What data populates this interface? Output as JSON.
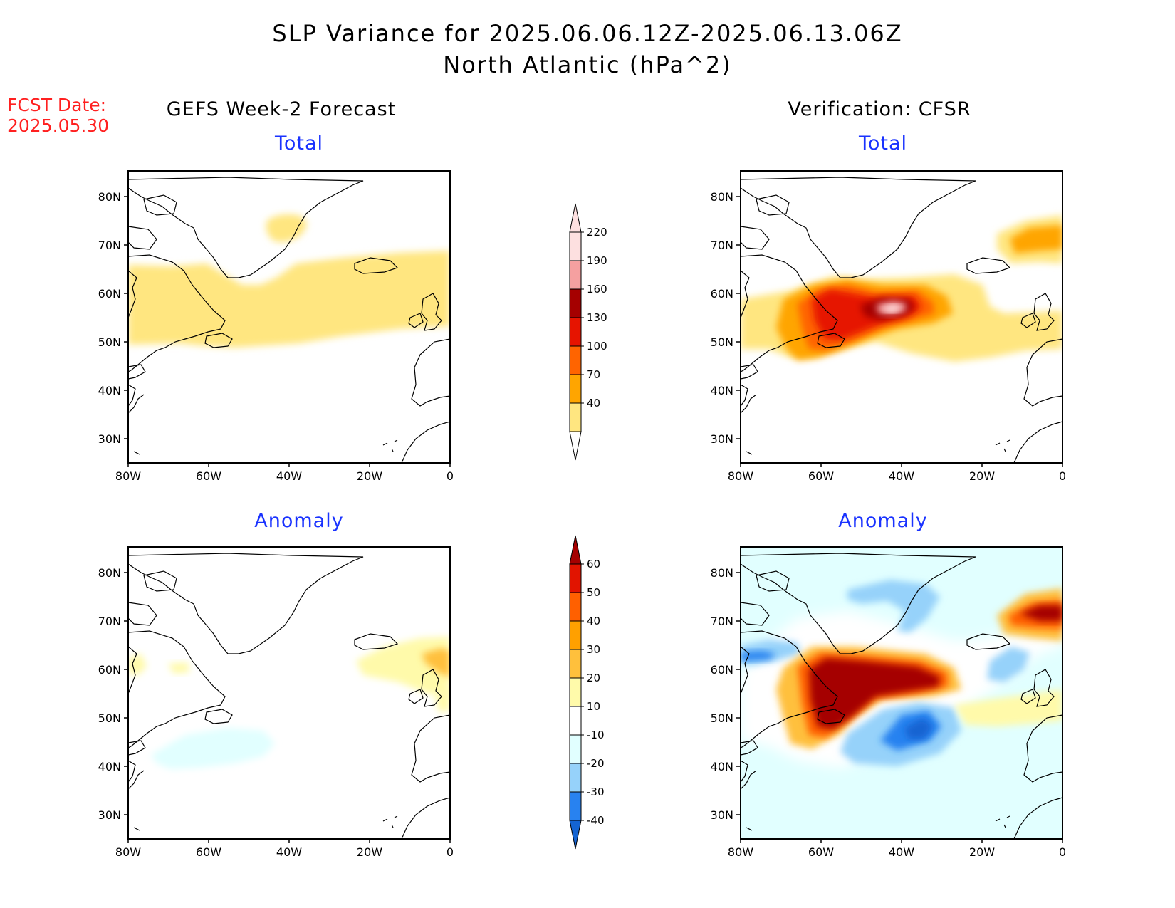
{
  "title_line1": "SLP Variance for 2025.06.06.12Z-2025.06.13.06Z",
  "title_line2": "North Atlantic (hPa^2)",
  "fcst_label": "FCST Date:",
  "fcst_date": "2025.05.30",
  "left_column_title": "GEFS Week-2 Forecast",
  "right_column_title": "Verification: CFSR",
  "panel_total": "Total",
  "panel_anomaly": "Anomaly",
  "lat_ticks": [
    "80N",
    "70N",
    "60N",
    "50N",
    "40N",
    "30N"
  ],
  "lon_ticks": [
    "80W",
    "60W",
    "40W",
    "20W",
    "0"
  ],
  "total_colorbar": {
    "levels": [
      "40",
      "70",
      "100",
      "130",
      "160",
      "190",
      "220"
    ],
    "colors": [
      "#ffe680",
      "#ffa500",
      "#ff6400",
      "#e61400",
      "#a50000",
      "#f5a0a0",
      "#fde0e0"
    ]
  },
  "anomaly_colorbar": {
    "levels": [
      "-40",
      "-30",
      "-20",
      "-10",
      "10",
      "20",
      "30",
      "40",
      "50",
      "60"
    ],
    "colors": [
      "#1464d2",
      "#2882f0",
      "#96d2fa",
      "#e1ffff",
      "#ffffff",
      "#fffaaa",
      "#ffc03c",
      "#ffa000",
      "#ff6000",
      "#e11400",
      "#a50000"
    ]
  }
}
